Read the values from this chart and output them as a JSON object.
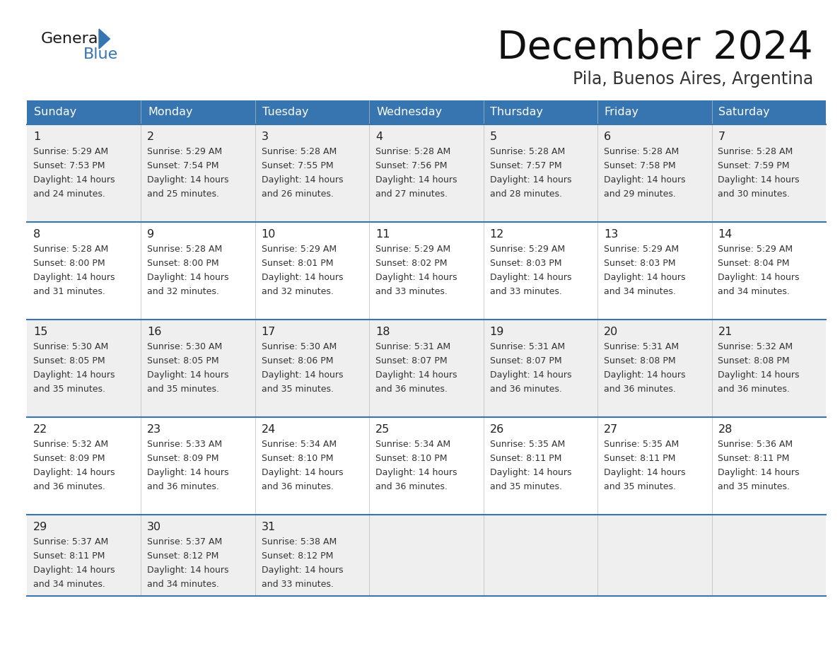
{
  "title": "December 2024",
  "subtitle": "Pila, Buenos Aires, Argentina",
  "days_of_week": [
    "Sunday",
    "Monday",
    "Tuesday",
    "Wednesday",
    "Thursday",
    "Friday",
    "Saturday"
  ],
  "header_bg_color": "#3675b0",
  "header_text_color": "#ffffff",
  "cell_bg_light": "#efefef",
  "cell_bg_white": "#ffffff",
  "cell_text_color": "#333333",
  "day_num_color": "#222222",
  "divider_color": "#3675b0",
  "logo_general_color": "#1a1a1a",
  "logo_blue_color": "#3675b0",
  "title_color": "#111111",
  "subtitle_color": "#333333",
  "calendar_data": [
    [
      {
        "day": 1,
        "sunrise": "5:29 AM",
        "sunset": "7:53 PM",
        "daylight_hours": 14,
        "daylight_minutes": 24
      },
      {
        "day": 2,
        "sunrise": "5:29 AM",
        "sunset": "7:54 PM",
        "daylight_hours": 14,
        "daylight_minutes": 25
      },
      {
        "day": 3,
        "sunrise": "5:28 AM",
        "sunset": "7:55 PM",
        "daylight_hours": 14,
        "daylight_minutes": 26
      },
      {
        "day": 4,
        "sunrise": "5:28 AM",
        "sunset": "7:56 PM",
        "daylight_hours": 14,
        "daylight_minutes": 27
      },
      {
        "day": 5,
        "sunrise": "5:28 AM",
        "sunset": "7:57 PM",
        "daylight_hours": 14,
        "daylight_minutes": 28
      },
      {
        "day": 6,
        "sunrise": "5:28 AM",
        "sunset": "7:58 PM",
        "daylight_hours": 14,
        "daylight_minutes": 29
      },
      {
        "day": 7,
        "sunrise": "5:28 AM",
        "sunset": "7:59 PM",
        "daylight_hours": 14,
        "daylight_minutes": 30
      }
    ],
    [
      {
        "day": 8,
        "sunrise": "5:28 AM",
        "sunset": "8:00 PM",
        "daylight_hours": 14,
        "daylight_minutes": 31
      },
      {
        "day": 9,
        "sunrise": "5:28 AM",
        "sunset": "8:00 PM",
        "daylight_hours": 14,
        "daylight_minutes": 32
      },
      {
        "day": 10,
        "sunrise": "5:29 AM",
        "sunset": "8:01 PM",
        "daylight_hours": 14,
        "daylight_minutes": 32
      },
      {
        "day": 11,
        "sunrise": "5:29 AM",
        "sunset": "8:02 PM",
        "daylight_hours": 14,
        "daylight_minutes": 33
      },
      {
        "day": 12,
        "sunrise": "5:29 AM",
        "sunset": "8:03 PM",
        "daylight_hours": 14,
        "daylight_minutes": 33
      },
      {
        "day": 13,
        "sunrise": "5:29 AM",
        "sunset": "8:03 PM",
        "daylight_hours": 14,
        "daylight_minutes": 34
      },
      {
        "day": 14,
        "sunrise": "5:29 AM",
        "sunset": "8:04 PM",
        "daylight_hours": 14,
        "daylight_minutes": 34
      }
    ],
    [
      {
        "day": 15,
        "sunrise": "5:30 AM",
        "sunset": "8:05 PM",
        "daylight_hours": 14,
        "daylight_minutes": 35
      },
      {
        "day": 16,
        "sunrise": "5:30 AM",
        "sunset": "8:05 PM",
        "daylight_hours": 14,
        "daylight_minutes": 35
      },
      {
        "day": 17,
        "sunrise": "5:30 AM",
        "sunset": "8:06 PM",
        "daylight_hours": 14,
        "daylight_minutes": 35
      },
      {
        "day": 18,
        "sunrise": "5:31 AM",
        "sunset": "8:07 PM",
        "daylight_hours": 14,
        "daylight_minutes": 36
      },
      {
        "day": 19,
        "sunrise": "5:31 AM",
        "sunset": "8:07 PM",
        "daylight_hours": 14,
        "daylight_minutes": 36
      },
      {
        "day": 20,
        "sunrise": "5:31 AM",
        "sunset": "8:08 PM",
        "daylight_hours": 14,
        "daylight_minutes": 36
      },
      {
        "day": 21,
        "sunrise": "5:32 AM",
        "sunset": "8:08 PM",
        "daylight_hours": 14,
        "daylight_minutes": 36
      }
    ],
    [
      {
        "day": 22,
        "sunrise": "5:32 AM",
        "sunset": "8:09 PM",
        "daylight_hours": 14,
        "daylight_minutes": 36
      },
      {
        "day": 23,
        "sunrise": "5:33 AM",
        "sunset": "8:09 PM",
        "daylight_hours": 14,
        "daylight_minutes": 36
      },
      {
        "day": 24,
        "sunrise": "5:34 AM",
        "sunset": "8:10 PM",
        "daylight_hours": 14,
        "daylight_minutes": 36
      },
      {
        "day": 25,
        "sunrise": "5:34 AM",
        "sunset": "8:10 PM",
        "daylight_hours": 14,
        "daylight_minutes": 36
      },
      {
        "day": 26,
        "sunrise": "5:35 AM",
        "sunset": "8:11 PM",
        "daylight_hours": 14,
        "daylight_minutes": 35
      },
      {
        "day": 27,
        "sunrise": "5:35 AM",
        "sunset": "8:11 PM",
        "daylight_hours": 14,
        "daylight_minutes": 35
      },
      {
        "day": 28,
        "sunrise": "5:36 AM",
        "sunset": "8:11 PM",
        "daylight_hours": 14,
        "daylight_minutes": 35
      }
    ],
    [
      {
        "day": 29,
        "sunrise": "5:37 AM",
        "sunset": "8:11 PM",
        "daylight_hours": 14,
        "daylight_minutes": 34
      },
      {
        "day": 30,
        "sunrise": "5:37 AM",
        "sunset": "8:12 PM",
        "daylight_hours": 14,
        "daylight_minutes": 34
      },
      {
        "day": 31,
        "sunrise": "5:38 AM",
        "sunset": "8:12 PM",
        "daylight_hours": 14,
        "daylight_minutes": 33
      },
      null,
      null,
      null,
      null
    ]
  ]
}
